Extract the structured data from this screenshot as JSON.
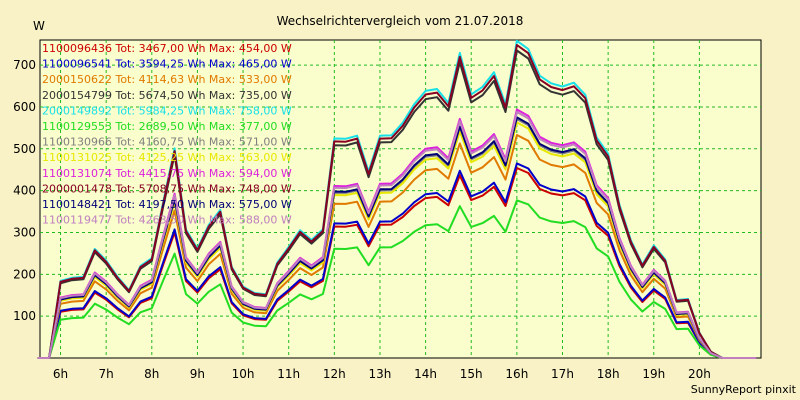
{
  "chart_data": {
    "type": "line",
    "title": "Wechselrichtervergleich vom 21.07.2018",
    "ylabel": "W",
    "footer": "SunnyReport pinxit",
    "ylim": [
      0,
      760
    ],
    "xlim": [
      5.55,
      21.35
    ],
    "yticks": [
      100,
      200,
      300,
      400,
      500,
      600,
      700
    ],
    "xticks": [
      {
        "value": 6,
        "label": "6h"
      },
      {
        "value": 7,
        "label": "7h"
      },
      {
        "value": 8,
        "label": "8h"
      },
      {
        "value": 9,
        "label": "9h"
      },
      {
        "value": 10,
        "label": "10h"
      },
      {
        "value": 11,
        "label": "11h"
      },
      {
        "value": 12,
        "label": "12h"
      },
      {
        "value": 13,
        "label": "13h"
      },
      {
        "value": 14,
        "label": "14h"
      },
      {
        "value": 15,
        "label": "15h"
      },
      {
        "value": 16,
        "label": "16h"
      },
      {
        "value": 17,
        "label": "17h"
      },
      {
        "value": 18,
        "label": "18h"
      },
      {
        "value": 19,
        "label": "19h"
      },
      {
        "value": 20,
        "label": "20h"
      }
    ],
    "grid": true,
    "legend_placement": "top-left",
    "x": [
      5.5,
      5.75,
      6.0,
      6.25,
      6.5,
      6.75,
      7.0,
      7.25,
      7.5,
      7.75,
      8.0,
      8.25,
      8.5,
      8.75,
      9.0,
      9.25,
      9.5,
      9.75,
      10.0,
      10.25,
      10.5,
      10.75,
      11.0,
      11.25,
      11.5,
      11.75,
      12.0,
      12.25,
      12.5,
      12.75,
      13.0,
      13.25,
      13.5,
      13.75,
      14.0,
      14.25,
      14.5,
      14.75,
      15.0,
      15.25,
      15.5,
      15.75,
      16.0,
      16.25,
      16.5,
      16.75,
      17.0,
      17.25,
      17.5,
      17.75,
      18.0,
      18.25,
      18.5,
      18.75,
      19.0,
      19.25,
      19.5,
      19.75,
      20.0,
      20.25,
      20.5,
      20.75,
      21.0,
      21.25
    ],
    "reference_profile": [
      0,
      0,
      0.243,
      0.253,
      0.256,
      0.344,
      0.307,
      0.256,
      0.214,
      0.29,
      0.315,
      0.492,
      0.661,
      0.405,
      0.345,
      0.42,
      0.467,
      0.288,
      0.225,
      0.205,
      0.201,
      0.301,
      0.35,
      0.403,
      0.372,
      0.406,
      0.692,
      0.691,
      0.701,
      0.588,
      0.701,
      0.702,
      0.742,
      0.8,
      0.842,
      0.848,
      0.804,
      0.962,
      0.831,
      0.855,
      0.901,
      0.8,
      1.0,
      0.974,
      0.89,
      0.866,
      0.856,
      0.868,
      0.83,
      0.695,
      0.644,
      0.483,
      0.371,
      0.295,
      0.355,
      0.311,
      0.183,
      0.186,
      0.08,
      0.02,
      0.0,
      0,
      0,
      0
    ],
    "series": [
      {
        "name": "1100096436 Tot: 3467,00 Wh Max: 454,00 W",
        "color": "#cc0000",
        "max": 454
      },
      {
        "name": "1100096541 Tot: 3594,25 Wh Max: 465,00 W",
        "color": "#0000cc",
        "max": 465
      },
      {
        "name": "2000150622 Tot: 4114,63 Wh Max: 533,00 W",
        "color": "#e07a00",
        "max": 533
      },
      {
        "name": "2000154799 Tot: 5674,50 Wh Max: 735,00 W",
        "color": "#333333",
        "max": 735
      },
      {
        "name": "2000149892 Tot: 5984,25 Wh Max: 758,00 W",
        "color": "#18e0e8",
        "max": 758
      },
      {
        "name": "1100129553 Tot: 2689,50 Wh Max: 377,00 W",
        "color": "#22dd22",
        "max": 377
      },
      {
        "name": "1100130966 Tot: 4160,75 Wh Max: 571,00 W",
        "color": "#808080",
        "max": 571
      },
      {
        "name": "1100131025 Tot: 4125,25 Wh Max: 563,00 W",
        "color": "#e8e800",
        "max": 563
      },
      {
        "name": "1100131074 Tot: 4415,75 Wh Max: 594,00 W",
        "color": "#dd22dd",
        "max": 594
      },
      {
        "name": "2000001478 Tot: 5708,75 Wh Max: 748,00 W",
        "color": "#880022",
        "max": 748
      },
      {
        "name": "1100148421 Tot: 4197,50 Wh Max: 575,00 W",
        "color": "#000077",
        "max": 575
      },
      {
        "name": "1100119477 Tot: 4263,50 Wh Max: 588,00 W",
        "color": "#c080c0",
        "max": 588
      }
    ]
  }
}
